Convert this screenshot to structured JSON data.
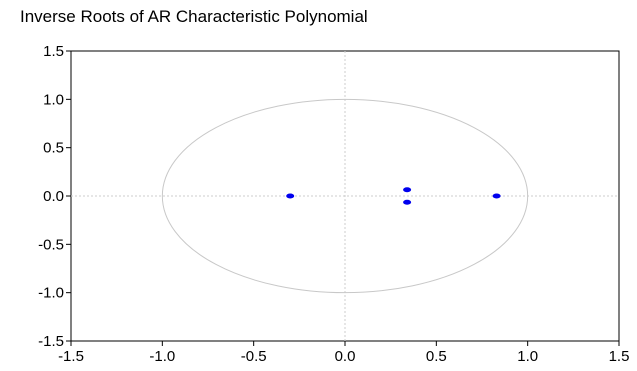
{
  "chart_data": {
    "type": "scatter",
    "title": "Inverse Roots of AR Characteristic Polynomial",
    "xlabel": "",
    "ylabel": "",
    "xlim": [
      -1.5,
      1.5
    ],
    "ylim": [
      -1.5,
      1.5
    ],
    "xticks": [
      -1.5,
      -1.0,
      -0.5,
      0.0,
      0.5,
      1.0,
      1.5
    ],
    "yticks": [
      -1.5,
      -1.0,
      -0.5,
      0.0,
      0.5,
      1.0,
      1.5
    ],
    "xtick_labels": [
      "-1.5",
      "-1.0",
      "-0.5",
      "0.0",
      "0.5",
      "1.0",
      "1.5"
    ],
    "ytick_labels": [
      "-1.5",
      "-1.0",
      "-0.5",
      "0.0",
      "0.5",
      "1.0",
      "1.5"
    ],
    "grid": false,
    "zero_lines": true,
    "unit_circle": true,
    "legend": "none",
    "series": [
      {
        "points": [
          {
            "x": -0.3,
            "y": 0.0
          },
          {
            "x": 0.34,
            "y": 0.065
          },
          {
            "x": 0.34,
            "y": -0.065
          },
          {
            "x": 0.83,
            "y": 0.0
          }
        ]
      }
    ],
    "colors": {
      "points": "#0000ee",
      "circle": "#c8c8c8",
      "zero_lines": "#cccccc",
      "axes": "#000000",
      "text": "#000000",
      "background": "#ffffff"
    }
  }
}
